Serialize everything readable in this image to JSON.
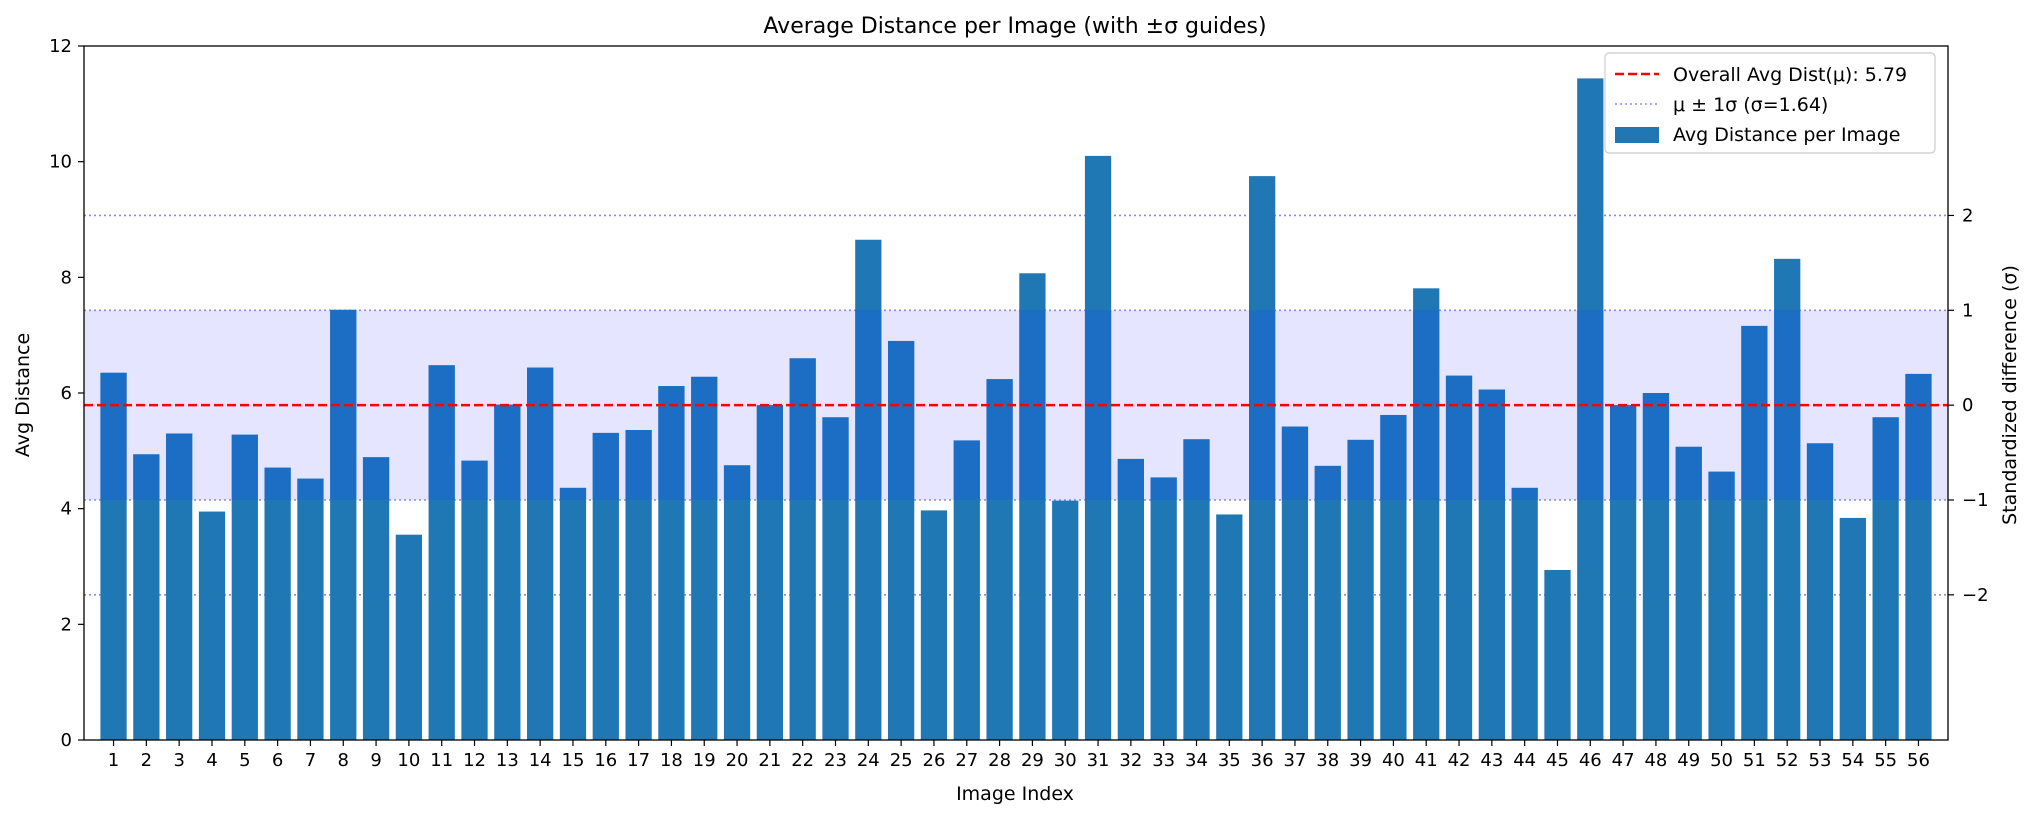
{
  "chart_data": {
    "type": "bar",
    "title": "Average Distance per Image (with ±σ guides)",
    "xlabel": "Image Index",
    "ylabel": "Avg Distance",
    "y2label": "Standardized difference (σ)",
    "ylim": [
      0,
      12
    ],
    "yticks": [
      "0",
      "2",
      "4",
      "6",
      "8",
      "10",
      "12"
    ],
    "y2ticks": [
      "−2",
      "−1",
      "0",
      "1",
      "2"
    ],
    "mean": 5.79,
    "sigma": 1.64,
    "categories": [
      "1",
      "2",
      "3",
      "4",
      "5",
      "6",
      "7",
      "8",
      "9",
      "10",
      "11",
      "12",
      "13",
      "14",
      "15",
      "16",
      "17",
      "18",
      "19",
      "20",
      "21",
      "22",
      "23",
      "24",
      "25",
      "26",
      "27",
      "28",
      "29",
      "30",
      "31",
      "32",
      "33",
      "34",
      "35",
      "36",
      "37",
      "38",
      "39",
      "40",
      "41",
      "42",
      "43",
      "44",
      "45",
      "46",
      "47",
      "48",
      "49",
      "50",
      "51",
      "52",
      "53",
      "54",
      "55",
      "56"
    ],
    "series": [
      {
        "name": "Avg Distance per Image",
        "values": [
          6.35,
          4.94,
          5.3,
          3.95,
          5.28,
          4.71,
          4.52,
          7.44,
          4.89,
          3.55,
          6.48,
          4.83,
          5.8,
          6.44,
          4.36,
          5.31,
          5.36,
          6.12,
          6.28,
          4.75,
          5.79,
          6.6,
          5.58,
          8.65,
          6.9,
          3.97,
          5.18,
          6.24,
          8.07,
          4.14,
          10.1,
          4.86,
          4.54,
          5.2,
          3.9,
          9.75,
          5.42,
          4.74,
          5.19,
          5.62,
          7.81,
          6.3,
          6.06,
          4.36,
          2.94,
          11.44,
          5.79,
          6.0,
          5.07,
          4.64,
          7.16,
          8.32,
          5.13,
          3.84,
          5.58,
          6.33
        ],
        "color": "#1f77b4"
      }
    ],
    "legend": {
      "position": "top-right",
      "entries": [
        "Overall Avg Dist(μ): 5.79",
        "μ ± 1σ (σ=1.64)",
        "Avg Distance per Image"
      ]
    },
    "colors": {
      "bar": "#1f77b4",
      "mean_line": "#ff0000",
      "sigma_line": "#8888ee",
      "sigma_band": "#e5e5ff"
    }
  }
}
